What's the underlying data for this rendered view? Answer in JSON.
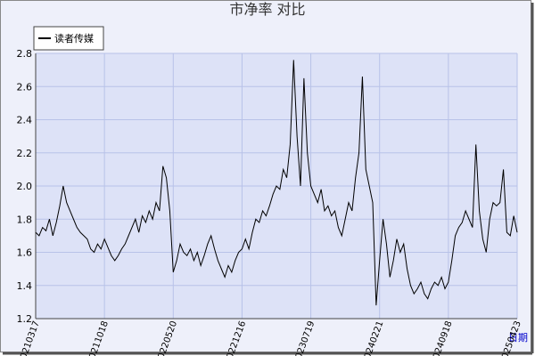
{
  "chart_data": {
    "type": "line",
    "title": "市净率  对比",
    "x_label": "日期",
    "categories": [
      "20210317",
      null,
      null,
      null,
      null,
      null,
      null,
      null,
      null,
      null,
      null,
      null,
      null,
      null,
      null,
      null,
      null,
      null,
      null,
      null,
      "20211018",
      null,
      null,
      null,
      null,
      null,
      null,
      null,
      null,
      null,
      null,
      null,
      null,
      null,
      null,
      null,
      null,
      null,
      null,
      null,
      "20220520",
      null,
      null,
      null,
      null,
      null,
      null,
      null,
      null,
      null,
      null,
      null,
      null,
      null,
      null,
      null,
      null,
      null,
      null,
      null,
      "20221216",
      null,
      null,
      null,
      null,
      null,
      null,
      null,
      null,
      null,
      null,
      null,
      null,
      null,
      null,
      null,
      null,
      null,
      null,
      null,
      "20230719",
      null,
      null,
      null,
      null,
      null,
      null,
      null,
      null,
      null,
      null,
      null,
      null,
      null,
      null,
      null,
      null,
      null,
      null,
      null,
      "20240221",
      null,
      null,
      null,
      null,
      null,
      null,
      null,
      null,
      null,
      null,
      null,
      null,
      null,
      null,
      null,
      null,
      null,
      null,
      null,
      "20240918",
      null,
      null,
      null,
      null,
      null,
      null,
      null,
      null,
      null,
      null,
      null,
      null,
      null,
      null,
      null,
      null,
      null,
      null,
      null,
      "20250423"
    ],
    "series": [
      {
        "name": "读者传媒",
        "color": "#000000",
        "values": [
          1.72,
          1.7,
          1.75,
          1.73,
          1.8,
          1.7,
          1.78,
          1.88,
          2.0,
          1.9,
          1.85,
          1.8,
          1.75,
          1.72,
          1.7,
          1.68,
          1.62,
          1.6,
          1.65,
          1.62,
          1.68,
          1.63,
          1.58,
          1.55,
          1.58,
          1.62,
          1.65,
          1.7,
          1.75,
          1.8,
          1.72,
          1.82,
          1.78,
          1.85,
          1.8,
          1.9,
          1.85,
          2.12,
          2.05,
          1.85,
          1.48,
          1.55,
          1.65,
          1.6,
          1.58,
          1.62,
          1.55,
          1.6,
          1.52,
          1.58,
          1.65,
          1.7,
          1.62,
          1.55,
          1.5,
          1.45,
          1.52,
          1.48,
          1.55,
          1.6,
          1.62,
          1.68,
          1.62,
          1.72,
          1.8,
          1.78,
          1.85,
          1.82,
          1.88,
          1.95,
          2.0,
          1.98,
          2.1,
          2.05,
          2.25,
          2.76,
          2.3,
          2.0,
          2.65,
          2.2,
          2.0,
          1.95,
          1.9,
          1.98,
          1.85,
          1.88,
          1.82,
          1.85,
          1.75,
          1.7,
          1.8,
          1.9,
          1.85,
          2.05,
          2.2,
          2.66,
          2.1,
          2.0,
          1.9,
          1.28,
          1.55,
          1.8,
          1.65,
          1.45,
          1.55,
          1.68,
          1.6,
          1.65,
          1.5,
          1.4,
          1.35,
          1.38,
          1.42,
          1.35,
          1.32,
          1.38,
          1.42,
          1.4,
          1.45,
          1.38,
          1.42,
          1.55,
          1.7,
          1.75,
          1.78,
          1.85,
          1.8,
          1.75,
          2.25,
          1.85,
          1.68,
          1.6,
          1.8,
          1.9,
          1.88,
          1.9,
          2.1,
          1.72,
          1.7,
          1.82,
          1.72
        ]
      }
    ],
    "ylim": [
      1.2,
      2.8
    ],
    "yticks": [
      1.2,
      1.4,
      1.6,
      1.8,
      {
        "value": 2,
        "label": "2.0"
      },
      2.2,
      2.4,
      2.6,
      2.8
    ],
    "grid": true
  }
}
